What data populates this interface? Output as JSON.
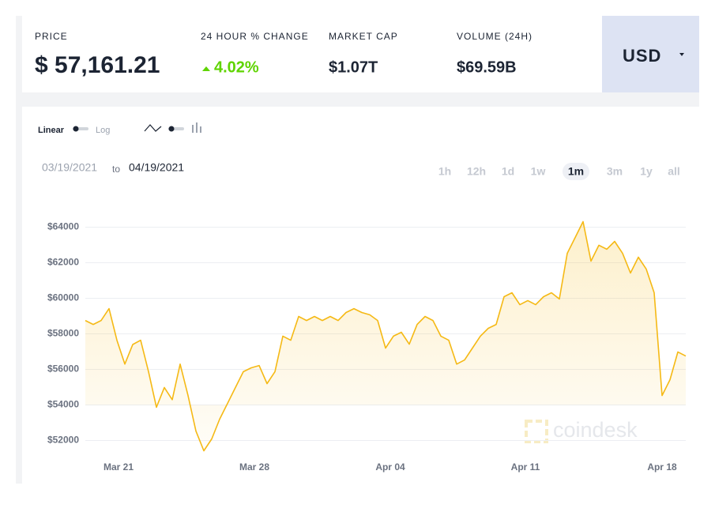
{
  "stats": [
    {
      "label": "PRICE",
      "value": "$ 57,161.21"
    },
    {
      "label": "24 HOUR % CHANGE",
      "value": "4.02%"
    },
    {
      "label": "MARKET CAP",
      "value": "$1.07T"
    },
    {
      "label": "VOLUME (24H)",
      "value": "$69.59B"
    }
  ],
  "currency": "USD",
  "scale_toggle": {
    "linear": "Linear",
    "log": "Log"
  },
  "date_range": {
    "from": "03/19/2021",
    "to_word": "to",
    "to": "04/19/2021"
  },
  "ranges": [
    "1h",
    "12h",
    "1d",
    "1w",
    "1m",
    "3m",
    "1y",
    "all"
  ],
  "selected_range": "1m",
  "watermark": "coindesk",
  "chart_data": {
    "type": "line",
    "color": "#f5b915",
    "grid": true,
    "values": [
      58750,
      58530,
      58750,
      59420,
      57640,
      56300,
      57400,
      57640,
      55870,
      53870,
      54980,
      54300,
      56300,
      54530,
      52530,
      51420,
      52090,
      53200,
      54090,
      54980,
      55870,
      56090,
      56220,
      55200,
      55870,
      57870,
      57640,
      58980,
      58750,
      58980,
      58750,
      58980,
      58750,
      59200,
      59420,
      59200,
      59070,
      58750,
      57200,
      57870,
      58090,
      57420,
      58530,
      58980,
      58750,
      57870,
      57640,
      56300,
      56530,
      57200,
      57870,
      58310,
      58530,
      60090,
      60310,
      59640,
      59870,
      59640,
      60090,
      60310,
      59960,
      62530,
      63420,
      64310,
      62090,
      62980,
      62760,
      63200,
      62530,
      61420,
      62310,
      61640,
      60310,
      54530,
      55420,
      56980,
      56750
    ],
    "xlim": [
      0,
      76
    ],
    "xticks": [
      {
        "value": 4.2,
        "label": "Mar 21"
      },
      {
        "value": 21.4,
        "label": "Mar 28"
      },
      {
        "value": 38.6,
        "label": "Apr 04"
      },
      {
        "value": 55.7,
        "label": "Apr 11"
      },
      {
        "value": 73,
        "label": "Apr 18"
      }
    ],
    "ylim": [
      51000,
      65000
    ],
    "yticks": [
      {
        "value": 52000,
        "label": "$52000"
      },
      {
        "value": 54000,
        "label": "$54000"
      },
      {
        "value": 56000,
        "label": "$56000"
      },
      {
        "value": 58000,
        "label": "$58000"
      },
      {
        "value": 60000,
        "label": "$60000"
      },
      {
        "value": 62000,
        "label": "$62000"
      },
      {
        "value": 64000,
        "label": "$64000"
      }
    ]
  }
}
